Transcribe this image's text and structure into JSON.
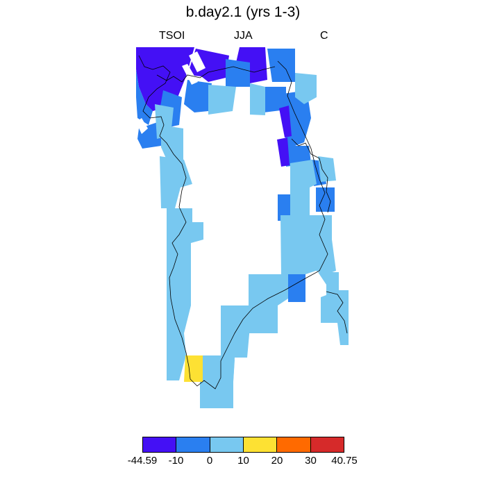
{
  "figure": {
    "title": "b.day2.1 (yrs 1-3)",
    "variable": "TSOI",
    "season": "JJA",
    "units": "C"
  },
  "colors": {
    "c1": "#4410f5",
    "c2": "#2a7ff0",
    "c3": "#78c8f0",
    "c4": "#fde133",
    "c5": "#ff6a00",
    "c6": "#d62a2a",
    "coast": "#000000"
  },
  "legend": {
    "colors": [
      "#4410f5",
      "#2a7ff0",
      "#78c8f0",
      "#fde133",
      "#ff6a00",
      "#d62a2a"
    ],
    "ticks": [
      "-44.59",
      "-10",
      "0",
      "10",
      "20",
      "30",
      "40.75"
    ]
  },
  "map": {
    "region": "Greenland",
    "notes": "Gridded field: white interior (ice sheet, no data); colored coastal margin cells."
  }
}
